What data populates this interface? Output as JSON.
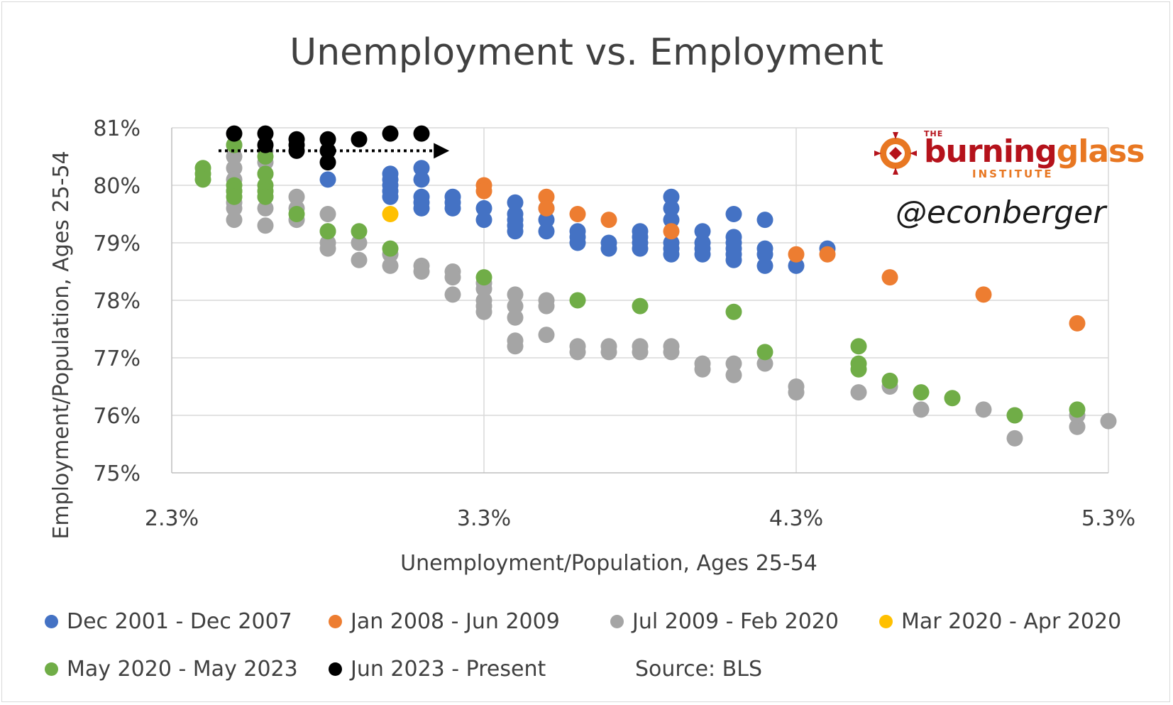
{
  "chart_data": {
    "type": "scatter",
    "title": "Unemployment vs. Employment",
    "xlabel": "Unemployment/Population, Ages 25-54",
    "ylabel": "Employment/Population, Ages 25-54",
    "xlim": [
      2.3,
      5.3
    ],
    "ylim": [
      75,
      81
    ],
    "x_ticks": [
      "2.3%",
      "3.3%",
      "4.3%",
      "5.3%"
    ],
    "y_ticks": [
      "75%",
      "76%",
      "77%",
      "78%",
      "79%",
      "80%",
      "81%"
    ],
    "grid": true,
    "legend_position": "bottom",
    "series": [
      {
        "name": "Dec 2001 - Dec 2007",
        "color": "#4472c4",
        "points": [
          [
            2.8,
            80.1
          ],
          [
            3.0,
            80.2
          ],
          [
            3.0,
            80.1
          ],
          [
            3.0,
            80.0
          ],
          [
            3.0,
            79.9
          ],
          [
            3.0,
            79.8
          ],
          [
            3.1,
            80.3
          ],
          [
            3.1,
            80.1
          ],
          [
            3.1,
            79.8
          ],
          [
            3.1,
            79.7
          ],
          [
            3.1,
            79.6
          ],
          [
            3.2,
            79.8
          ],
          [
            3.2,
            79.7
          ],
          [
            3.2,
            79.6
          ],
          [
            3.3,
            79.6
          ],
          [
            3.3,
            79.4
          ],
          [
            3.4,
            79.7
          ],
          [
            3.4,
            79.5
          ],
          [
            3.4,
            79.4
          ],
          [
            3.4,
            79.3
          ],
          [
            3.4,
            79.2
          ],
          [
            3.5,
            79.6
          ],
          [
            3.5,
            79.4
          ],
          [
            3.5,
            79.2
          ],
          [
            3.6,
            79.2
          ],
          [
            3.6,
            79.1
          ],
          [
            3.6,
            79.0
          ],
          [
            3.7,
            79.0
          ],
          [
            3.7,
            78.9
          ],
          [
            3.8,
            79.2
          ],
          [
            3.8,
            79.1
          ],
          [
            3.8,
            79.0
          ],
          [
            3.8,
            78.9
          ],
          [
            3.9,
            79.8
          ],
          [
            3.9,
            79.6
          ],
          [
            3.9,
            79.4
          ],
          [
            3.9,
            79.0
          ],
          [
            3.9,
            78.9
          ],
          [
            3.9,
            78.8
          ],
          [
            4.0,
            79.2
          ],
          [
            4.0,
            79.0
          ],
          [
            4.0,
            78.9
          ],
          [
            4.0,
            78.8
          ],
          [
            4.1,
            79.5
          ],
          [
            4.1,
            79.1
          ],
          [
            4.1,
            79.0
          ],
          [
            4.1,
            78.9
          ],
          [
            4.1,
            78.8
          ],
          [
            4.1,
            78.7
          ],
          [
            4.2,
            79.4
          ],
          [
            4.2,
            78.9
          ],
          [
            4.2,
            78.8
          ],
          [
            4.2,
            78.6
          ],
          [
            4.3,
            78.6
          ],
          [
            4.4,
            78.9
          ]
        ]
      },
      {
        "name": "Jan 2008 - Jun 2009",
        "color": "#ed7d31",
        "points": [
          [
            3.3,
            80.0
          ],
          [
            3.3,
            79.9
          ],
          [
            3.5,
            79.8
          ],
          [
            3.5,
            79.6
          ],
          [
            3.6,
            79.5
          ],
          [
            3.7,
            79.4
          ],
          [
            3.9,
            79.2
          ],
          [
            4.3,
            78.8
          ],
          [
            4.4,
            78.8
          ],
          [
            4.6,
            78.4
          ],
          [
            4.9,
            78.1
          ],
          [
            5.2,
            77.6
          ]
        ]
      },
      {
        "name": "Jul 2009 - Feb 2020",
        "color": "#a5a5a5",
        "points": [
          [
            2.5,
            80.7
          ],
          [
            2.5,
            80.5
          ],
          [
            2.5,
            80.3
          ],
          [
            2.5,
            80.1
          ],
          [
            2.5,
            79.9
          ],
          [
            2.5,
            79.7
          ],
          [
            2.5,
            79.6
          ],
          [
            2.5,
            79.4
          ],
          [
            2.6,
            80.6
          ],
          [
            2.6,
            80.4
          ],
          [
            2.6,
            80.2
          ],
          [
            2.6,
            79.8
          ],
          [
            2.6,
            79.6
          ],
          [
            2.6,
            79.3
          ],
          [
            2.7,
            79.8
          ],
          [
            2.7,
            79.6
          ],
          [
            2.7,
            79.4
          ],
          [
            2.8,
            79.5
          ],
          [
            2.8,
            79.2
          ],
          [
            2.8,
            79.0
          ],
          [
            2.8,
            78.9
          ],
          [
            2.9,
            79.0
          ],
          [
            2.9,
            78.7
          ],
          [
            3.0,
            78.8
          ],
          [
            3.0,
            78.6
          ],
          [
            3.1,
            78.6
          ],
          [
            3.1,
            78.5
          ],
          [
            3.2,
            78.5
          ],
          [
            3.2,
            78.4
          ],
          [
            3.2,
            78.1
          ],
          [
            3.3,
            78.3
          ],
          [
            3.3,
            78.2
          ],
          [
            3.3,
            78.0
          ],
          [
            3.3,
            77.9
          ],
          [
            3.3,
            77.8
          ],
          [
            3.4,
            78.1
          ],
          [
            3.4,
            77.9
          ],
          [
            3.4,
            77.7
          ],
          [
            3.4,
            77.3
          ],
          [
            3.4,
            77.2
          ],
          [
            3.5,
            78.0
          ],
          [
            3.5,
            77.9
          ],
          [
            3.5,
            77.4
          ],
          [
            3.6,
            77.2
          ],
          [
            3.6,
            77.1
          ],
          [
            3.7,
            77.2
          ],
          [
            3.7,
            77.1
          ],
          [
            3.8,
            77.2
          ],
          [
            3.8,
            77.1
          ],
          [
            3.9,
            77.2
          ],
          [
            3.9,
            77.1
          ],
          [
            4.0,
            76.9
          ],
          [
            4.0,
            76.8
          ],
          [
            4.1,
            76.9
          ],
          [
            4.1,
            76.7
          ],
          [
            4.2,
            76.9
          ],
          [
            4.3,
            76.5
          ],
          [
            4.3,
            76.4
          ],
          [
            4.5,
            76.4
          ],
          [
            4.6,
            76.5
          ],
          [
            4.7,
            76.1
          ],
          [
            4.9,
            76.1
          ],
          [
            5.0,
            75.6
          ],
          [
            5.0,
            76.0
          ],
          [
            5.2,
            75.8
          ],
          [
            5.2,
            76.0
          ],
          [
            5.3,
            75.9
          ]
        ]
      },
      {
        "name": "Mar 2020 - Apr 2020",
        "color": "#ffc000",
        "points": [
          [
            3.0,
            79.5
          ]
        ]
      },
      {
        "name": "May 2020 - May 2023",
        "color": "#70ad47",
        "points": [
          [
            2.4,
            80.3
          ],
          [
            2.4,
            80.2
          ],
          [
            2.4,
            80.1
          ],
          [
            2.5,
            80.7
          ],
          [
            2.5,
            80.0
          ],
          [
            2.5,
            79.9
          ],
          [
            2.5,
            79.8
          ],
          [
            2.6,
            80.5
          ],
          [
            2.6,
            80.2
          ],
          [
            2.6,
            80.0
          ],
          [
            2.6,
            79.9
          ],
          [
            2.6,
            79.8
          ],
          [
            2.7,
            79.5
          ],
          [
            2.8,
            79.2
          ],
          [
            2.9,
            79.2
          ],
          [
            3.0,
            78.9
          ],
          [
            3.3,
            78.4
          ],
          [
            3.6,
            78.0
          ],
          [
            3.8,
            77.9
          ],
          [
            4.1,
            77.8
          ],
          [
            4.2,
            77.1
          ],
          [
            4.5,
            77.2
          ],
          [
            4.5,
            76.9
          ],
          [
            4.5,
            76.8
          ],
          [
            4.6,
            76.6
          ],
          [
            4.7,
            76.4
          ],
          [
            4.8,
            76.3
          ],
          [
            5.0,
            76.0
          ],
          [
            5.2,
            76.1
          ]
        ]
      },
      {
        "name": "Jun 2023 - Present",
        "color": "#000000",
        "points": [
          [
            2.5,
            80.9
          ],
          [
            2.6,
            80.9
          ],
          [
            2.6,
            80.7
          ],
          [
            2.7,
            80.8
          ],
          [
            2.7,
            80.7
          ],
          [
            2.7,
            80.6
          ],
          [
            2.8,
            80.8
          ],
          [
            2.8,
            80.6
          ],
          [
            2.8,
            80.4
          ],
          [
            2.9,
            80.8
          ],
          [
            3.0,
            80.9
          ],
          [
            3.1,
            80.9
          ]
        ]
      }
    ],
    "annotations": [
      {
        "type": "dotted-arrow",
        "x_from": 2.45,
        "x_to": 3.18,
        "y": 80.6
      }
    ]
  },
  "legend": {
    "items": [
      {
        "label": "Dec 2001 - Dec 2007",
        "color": "#4472c4"
      },
      {
        "label": "Jan 2008 - Jun 2009",
        "color": "#ed7d31"
      },
      {
        "label": "Jul 2009 - Feb 2020",
        "color": "#a5a5a5"
      },
      {
        "label": "Mar 2020 - Apr 2020",
        "color": "#ffc000"
      },
      {
        "label": "May 2020 - May 2023",
        "color": "#70ad47"
      },
      {
        "label": "Jun 2023 - Present",
        "color": "#000000"
      }
    ],
    "source": "Source: BLS"
  },
  "branding": {
    "logo_top": "THE",
    "logo_name_part1": "burning",
    "logo_name_part2": "glass",
    "logo_sub": "INSTITUTE",
    "handle": "@econberger"
  }
}
